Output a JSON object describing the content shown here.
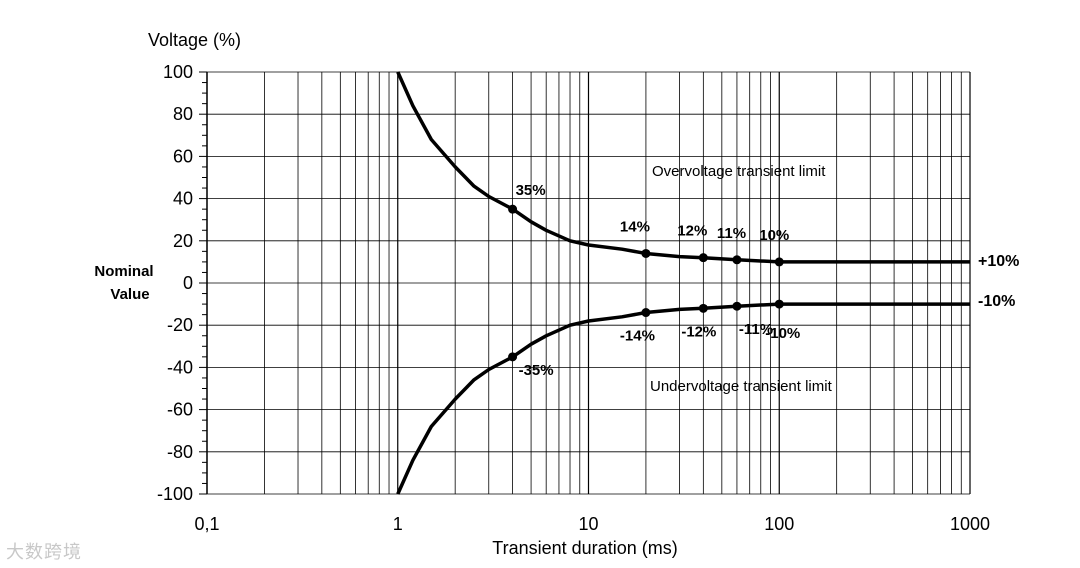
{
  "chart_data": {
    "type": "line",
    "title": "",
    "ylabel": "Voltage (%)",
    "xlabel": "Transient duration (ms)",
    "y_nominal_label": [
      "Nominal",
      "Value"
    ],
    "x_scale": "log",
    "xlim": [
      0.1,
      1000
    ],
    "ylim": [
      -100,
      100
    ],
    "x_tick_values": [
      0.1,
      1,
      10,
      100,
      1000
    ],
    "x_tick_labels": [
      "0,1",
      "1",
      "10",
      "100",
      "1000"
    ],
    "y_tick_values": [
      100,
      80,
      60,
      40,
      20,
      0,
      -20,
      -40,
      -60,
      -80,
      -100
    ],
    "y_tick_labels": [
      "100",
      "80",
      "60",
      "40",
      "20",
      "0",
      "-20",
      "-40",
      "-60",
      "-80",
      "-100"
    ],
    "grid": true,
    "series": [
      {
        "name": "Overvoltage transient limit",
        "x": [
          1,
          1.2,
          1.5,
          2,
          2.5,
          3,
          4,
          5,
          6,
          8,
          10,
          15,
          20,
          30,
          40,
          60,
          100,
          1000
        ],
        "y": [
          100,
          84,
          68,
          55,
          46,
          41,
          35,
          29,
          25,
          20,
          18,
          16,
          14,
          12.5,
          12,
          11,
          10,
          10
        ],
        "points": [
          {
            "x": 4,
            "y": 35,
            "label": "35%"
          },
          {
            "x": 20,
            "y": 14,
            "label": "14%"
          },
          {
            "x": 40,
            "y": 12,
            "label": "12%"
          },
          {
            "x": 60,
            "y": 11,
            "label": "11%"
          },
          {
            "x": 100,
            "y": 10,
            "label": "10%"
          }
        ],
        "end_label": "+10%"
      },
      {
        "name": "Undervoltage transient limit",
        "x": [
          1,
          1.2,
          1.5,
          2,
          2.5,
          3,
          4,
          5,
          6,
          8,
          10,
          15,
          20,
          30,
          40,
          60,
          100,
          1000
        ],
        "y": [
          -100,
          -84,
          -68,
          -55,
          -46,
          -41,
          -35,
          -29,
          -25,
          -20,
          -18,
          -16,
          -14,
          -12.5,
          -12,
          -11,
          -10,
          -10
        ],
        "points": [
          {
            "x": 4,
            "y": -35,
            "label": "-35%"
          },
          {
            "x": 20,
            "y": -14,
            "label": "-14%"
          },
          {
            "x": 40,
            "y": -12,
            "label": "-12%"
          },
          {
            "x": 60,
            "y": -11,
            "label": "-11%"
          },
          {
            "x": 100,
            "y": -10,
            "label": "-10%"
          }
        ],
        "end_label": "-10%"
      }
    ],
    "line_color": "#000000",
    "grid_color": "#000000"
  },
  "watermark": "大数跨境"
}
